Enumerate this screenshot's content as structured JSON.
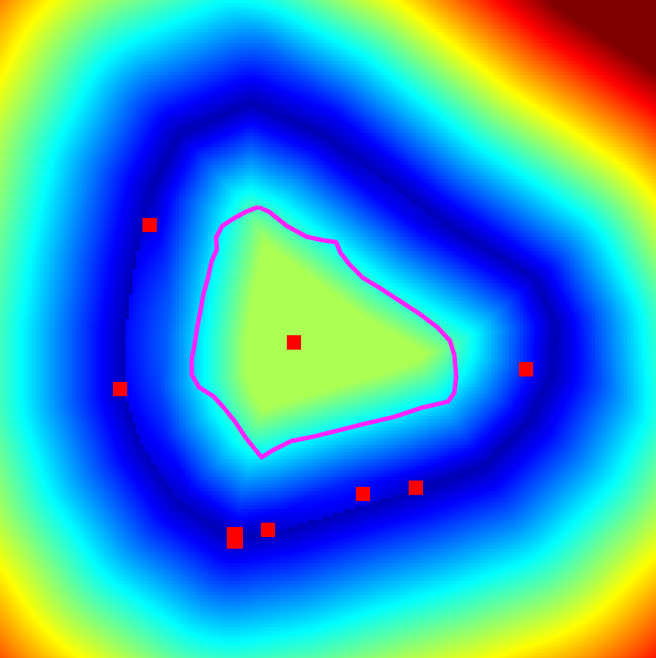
{
  "colors": {
    "colormap": "jet",
    "contour": "#ff22ff",
    "markers": "#ff0000"
  },
  "markers": {
    "count": 9
  },
  "contour": {
    "count": 1
  }
}
